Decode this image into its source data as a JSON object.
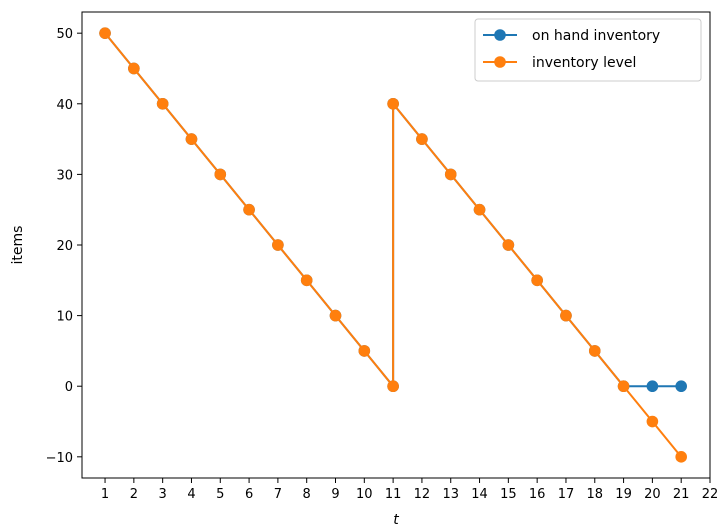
{
  "chart_data": {
    "type": "line",
    "title": "",
    "xlabel": "t",
    "ylabel": "items",
    "xlim": [
      0.2,
      22.0
    ],
    "ylim": [
      -13.0,
      53.0
    ],
    "xticks": [
      1,
      2,
      3,
      4,
      5,
      6,
      7,
      8,
      9,
      10,
      11,
      12,
      13,
      14,
      15,
      16,
      17,
      18,
      19,
      20,
      21,
      22
    ],
    "yticks": [
      -10,
      0,
      10,
      20,
      30,
      40,
      50
    ],
    "ytick_labels": [
      "−10",
      "0",
      "10",
      "20",
      "30",
      "40",
      "50"
    ],
    "legend_position": "top-right",
    "series": [
      {
        "name": "on hand inventory",
        "color": "#1f77b4",
        "x": [
          1,
          2,
          3,
          4,
          5,
          6,
          7,
          8,
          9,
          10,
          11,
          11,
          12,
          13,
          14,
          15,
          16,
          17,
          18,
          19,
          20,
          21
        ],
        "y": [
          50,
          45,
          40,
          35,
          30,
          25,
          20,
          15,
          10,
          5,
          0,
          40,
          35,
          30,
          25,
          20,
          15,
          10,
          5,
          0,
          0,
          0
        ]
      },
      {
        "name": "inventory level",
        "color": "#ff7f0e",
        "x": [
          1,
          2,
          3,
          4,
          5,
          6,
          7,
          8,
          9,
          10,
          11,
          11,
          12,
          13,
          14,
          15,
          16,
          17,
          18,
          19,
          20,
          21
        ],
        "y": [
          50,
          45,
          40,
          35,
          30,
          25,
          20,
          15,
          10,
          5,
          0,
          40,
          35,
          30,
          25,
          20,
          15,
          10,
          5,
          0,
          -5,
          -10
        ]
      }
    ]
  }
}
